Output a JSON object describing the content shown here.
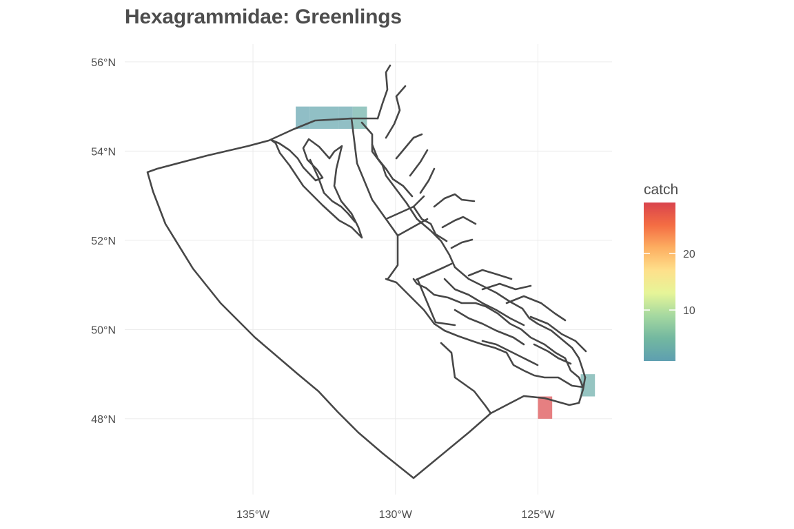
{
  "title": "Hexagrammidae: Greenlings",
  "map": {
    "projection": "lon/lat",
    "xlim": [
      -139.5,
      -122.4
    ],
    "ylim": [
      46.3,
      56.4
    ],
    "x_ticks": [
      {
        "value": -135,
        "label": "135°W"
      },
      {
        "value": -130,
        "label": "130°W"
      },
      {
        "value": -125,
        "label": "125°W"
      }
    ],
    "y_ticks": [
      {
        "value": 56,
        "label": "56°N"
      },
      {
        "value": 54,
        "label": "54°N"
      },
      {
        "value": 52,
        "label": "52°N"
      },
      {
        "value": 50,
        "label": "50°N"
      },
      {
        "value": 48,
        "label": "48°N"
      }
    ],
    "grid": true,
    "outline_color": "#474747"
  },
  "catch_cells": [
    {
      "lon_min": -133.5,
      "lon_max": -133.0,
      "lat_min": 54.5,
      "lat_max": 55.0,
      "catch": 1.5
    },
    {
      "lon_min": -133.0,
      "lon_max": -132.0,
      "lat_min": 54.5,
      "lat_max": 55.0,
      "catch": 2.0
    },
    {
      "lon_min": -132.0,
      "lon_max": -131.5,
      "lat_min": 54.5,
      "lat_max": 55.0,
      "catch": 1.8
    },
    {
      "lon_min": -131.5,
      "lon_max": -131.0,
      "lat_min": 54.5,
      "lat_max": 55.0,
      "catch": 3.5
    },
    {
      "lon_min": -125.0,
      "lon_max": -124.5,
      "lat_min": 48.0,
      "lat_max": 48.5,
      "catch": 28.5
    },
    {
      "lon_min": -123.5,
      "lon_max": -123.0,
      "lat_min": 48.5,
      "lat_max": 49.0,
      "catch": 3.0
    }
  ],
  "legend": {
    "title": "catch",
    "min": 1,
    "max": 29,
    "ticks": [
      {
        "value": 10,
        "label": "10"
      },
      {
        "value": 20,
        "label": "20"
      }
    ],
    "colors": [
      "#5e9fb0",
      "#73b8a0",
      "#a5d8a0",
      "#e6f598",
      "#fee08b",
      "#fdae61",
      "#f46d43",
      "#d9434d"
    ]
  }
}
